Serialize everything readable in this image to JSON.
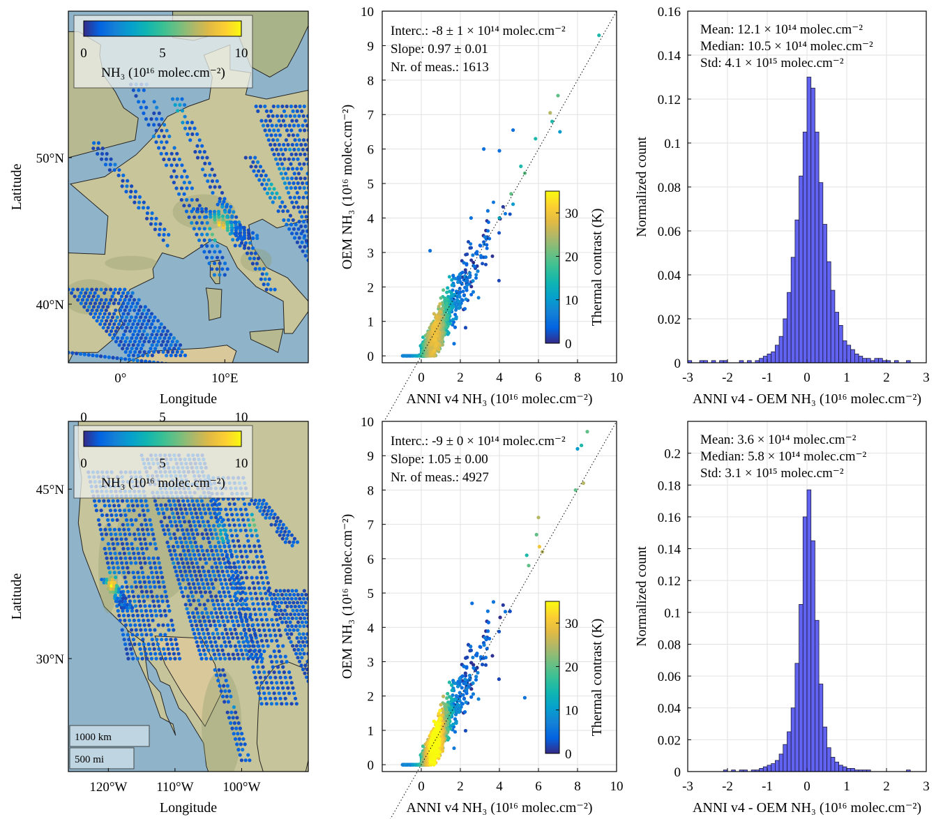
{
  "figure": {
    "maps": [
      {
        "xlabel": "Longitude",
        "ylabel": "Latitude",
        "xticks": [
          {
            "lon": 0,
            "label": "0°"
          },
          {
            "lon": 10,
            "label": "10°E"
          }
        ],
        "yticks": [
          {
            "lat": 50,
            "label": "50°N"
          },
          {
            "lat": 40,
            "label": "40°N"
          }
        ],
        "extent": {
          "lon": [
            -5,
            18
          ],
          "lat": [
            36,
            60
          ]
        },
        "colorbar": {
          "ticks": [
            "0",
            "5",
            "10"
          ],
          "range": [
            0,
            10
          ],
          "label": "NH₃ (10¹⁶ molec.cm⁻²)"
        },
        "hotspots": [
          {
            "lon": 9.5,
            "lat": 45.2,
            "value": 9
          },
          {
            "lon": 15,
            "lat": 48,
            "value": 4
          },
          {
            "lon": 5.5,
            "lat": 53,
            "value": 3
          }
        ]
      },
      {
        "xlabel": "Longitude",
        "ylabel": "Latitude",
        "xticks": [
          {
            "lon": -120,
            "label": "120°W"
          },
          {
            "lon": -110,
            "label": "110°W"
          },
          {
            "lon": -100,
            "label": "100°W"
          }
        ],
        "yticks": [
          {
            "lat": 45,
            "label": "45°N"
          },
          {
            "lat": 30,
            "label": "30°N"
          }
        ],
        "top_ticks": [
          "0",
          "5",
          "10"
        ],
        "extent": {
          "lon": [
            -126,
            -90
          ],
          "lat": [
            20,
            51
          ]
        },
        "colorbar": {
          "ticks": [
            "0",
            "5",
            "10"
          ],
          "range": [
            0,
            10
          ],
          "label": "NH₃ (10¹⁶ molec.cm⁻²)"
        },
        "scalebar": [
          "1000 km",
          "500 mi"
        ],
        "hotspots": [
          {
            "lon": -119.5,
            "lat": 36.5,
            "value": 9
          },
          {
            "lon": -98,
            "lat": 42,
            "value": 5
          },
          {
            "lon": -103,
            "lat": 41,
            "value": 3
          }
        ]
      }
    ]
  },
  "chart_data": [
    {
      "type": "scatter",
      "panel": "top-middle",
      "xlabel": "ANNI v4 NH₃ (10¹⁶ molec.cm⁻²)",
      "ylabel": "OEM NH₃ (10¹⁶ molec.cm⁻²)",
      "xlim": [
        -2,
        10
      ],
      "ylim": [
        -0.2,
        10
      ],
      "xticks": [
        0,
        2,
        4,
        6,
        8,
        10
      ],
      "yticks": [
        0,
        1,
        2,
        3,
        4,
        5,
        6,
        7,
        8,
        9,
        10
      ],
      "grid": true,
      "annotations": [
        "Interc.: -8 ± 1 × 10¹⁴ molec.cm⁻²",
        "Slope: 0.97 ± 0.01",
        "Nr. of meas.: 1613"
      ],
      "fit": {
        "intercept": -0.08,
        "slope": 0.97
      },
      "n_points": 1613,
      "one_to_one_line": true,
      "colorbar": {
        "label": "Thermal contrast (K)",
        "ticks": [
          0,
          10,
          20,
          30
        ],
        "range": [
          0,
          35
        ]
      },
      "outliers": [
        [
          9.1,
          9.3,
          15
        ],
        [
          7.0,
          7.55,
          20
        ],
        [
          7.1,
          6.5,
          10
        ],
        [
          6.6,
          7.05,
          25
        ],
        [
          6.7,
          6.8,
          15
        ],
        [
          5.85,
          6.3,
          15
        ],
        [
          4.7,
          6.55,
          5
        ],
        [
          4.0,
          5.95,
          5
        ],
        [
          3.2,
          6.0,
          5
        ],
        [
          2.55,
          4.0,
          5
        ],
        [
          0.45,
          3.05,
          5
        ],
        [
          5.3,
          5.3,
          20
        ],
        [
          5.1,
          5.5,
          15
        ],
        [
          4.6,
          4.7,
          20
        ],
        [
          4.7,
          4.4,
          10
        ],
        [
          4.0,
          4.0,
          12
        ]
      ]
    },
    {
      "type": "bar",
      "panel": "top-right",
      "xlabel": "ANNI v4 - OEM NH₃ (10¹⁶ molec.cm⁻²)",
      "ylabel": "Normalized count",
      "xlim": [
        -3,
        3
      ],
      "ylim": [
        0,
        0.16
      ],
      "xticks": [
        -3,
        -2,
        -1,
        0,
        1,
        2,
        3
      ],
      "yticks": [
        "0",
        "0.02",
        "0.04",
        "0.06",
        "0.08",
        "0.1",
        "0.12",
        "0.14",
        "0.16"
      ],
      "grid": true,
      "annotations": [
        "Mean:  12.1 × 10¹⁴  molec.cm⁻²",
        "Median:  10.5 × 10¹⁴ molec.cm⁻²",
        "Std:  4.1 × 10¹⁵ molec.cm⁻²"
      ],
      "bin_width": 0.1,
      "bin_centers": [
        -2.95,
        -2.85,
        -2.75,
        -2.65,
        -2.55,
        -2.45,
        -2.35,
        -2.25,
        -2.15,
        -2.05,
        -1.95,
        -1.85,
        -1.75,
        -1.65,
        -1.55,
        -1.45,
        -1.35,
        -1.25,
        -1.15,
        -1.05,
        -0.95,
        -0.85,
        -0.75,
        -0.65,
        -0.55,
        -0.45,
        -0.35,
        -0.25,
        -0.15,
        -0.05,
        0.05,
        0.15,
        0.25,
        0.35,
        0.45,
        0.55,
        0.65,
        0.75,
        0.85,
        0.95,
        1.05,
        1.15,
        1.25,
        1.35,
        1.45,
        1.55,
        1.65,
        1.75,
        1.85,
        1.95,
        2.05,
        2.15,
        2.25,
        2.35,
        2.45,
        2.55,
        2.65,
        2.75,
        2.85,
        2.95
      ],
      "values": [
        0.001,
        0,
        0,
        0.001,
        0.001,
        0,
        0.001,
        0,
        0.001,
        0.001,
        0,
        0,
        0,
        0.001,
        0,
        0.001,
        0,
        0.001,
        0.002,
        0.003,
        0.004,
        0.005,
        0.008,
        0.012,
        0.02,
        0.032,
        0.048,
        0.065,
        0.085,
        0.105,
        0.13,
        0.125,
        0.105,
        0.082,
        0.063,
        0.046,
        0.033,
        0.023,
        0.017,
        0.01,
        0.008,
        0.006,
        0.004,
        0.003,
        0.002,
        0.002,
        0.001,
        0.002,
        0.002,
        0.001,
        0.001,
        0,
        0.001,
        0,
        0,
        0.001,
        0,
        0,
        0,
        0
      ]
    },
    {
      "type": "scatter",
      "panel": "bottom-middle",
      "xlabel": "ANNI v4 NH₃ (10¹⁶ molec.cm⁻²)",
      "ylabel": "OEM NH₃ (10¹⁶ molec.cm⁻²)",
      "xlim": [
        -2,
        10
      ],
      "ylim": [
        -0.2,
        10
      ],
      "xticks": [
        0,
        2,
        4,
        6,
        8,
        10
      ],
      "yticks": [
        0,
        1,
        2,
        3,
        4,
        5,
        6,
        7,
        8,
        9,
        10
      ],
      "grid": true,
      "annotations": [
        "Interc.: -9 ± 0 × 10¹⁴ molec.cm⁻²",
        "Slope: 1.05 ± 0.00",
        "Nr. of meas.: 4927"
      ],
      "fit": {
        "intercept": -0.09,
        "slope": 1.05
      },
      "n_points": 4927,
      "one_to_one_line": true,
      "colorbar": {
        "label": "Thermal contrast (K)",
        "ticks": [
          0,
          10,
          20,
          30
        ],
        "range": [
          0,
          35
        ]
      },
      "outliers": [
        [
          8.5,
          9.7,
          20
        ],
        [
          8.2,
          9.3,
          15
        ],
        [
          8.0,
          9.2,
          10
        ],
        [
          8.3,
          8.2,
          25
        ],
        [
          7.9,
          8.0,
          20
        ],
        [
          6.0,
          7.2,
          25
        ],
        [
          5.9,
          6.7,
          20
        ],
        [
          6.05,
          6.35,
          30
        ],
        [
          5.3,
          1.95,
          5
        ],
        [
          2.6,
          4.7,
          5
        ],
        [
          5.4,
          6.1,
          15
        ],
        [
          6.2,
          6.2,
          25
        ],
        [
          5.5,
          5.8,
          20
        ]
      ]
    },
    {
      "type": "bar",
      "panel": "bottom-right",
      "xlabel": "ANNI v4 - OEM NH₃ (10¹⁶ molec.cm⁻²)",
      "ylabel": "Normalized count",
      "xlim": [
        -3,
        3
      ],
      "ylim": [
        0,
        0.22
      ],
      "xticks": [
        -3,
        -2,
        -1,
        0,
        1,
        2,
        3
      ],
      "yticks": [
        "0",
        "0.02",
        "0.04",
        "0.06",
        "0.08",
        "0.1",
        "0.12",
        "0.14",
        "0.16",
        "0.18",
        "0.2"
      ],
      "grid": true,
      "annotations": [
        "Mean:  3.6 × 10¹⁴  molec.cm⁻²",
        "Median:  5.8 × 10¹⁴ molec.cm⁻²",
        "Std:  3.1 × 10¹⁵ molec.cm⁻²"
      ],
      "bin_width": 0.1,
      "bin_centers": [
        -2.95,
        -2.85,
        -2.75,
        -2.65,
        -2.55,
        -2.45,
        -2.35,
        -2.25,
        -2.15,
        -2.05,
        -1.95,
        -1.85,
        -1.75,
        -1.65,
        -1.55,
        -1.45,
        -1.35,
        -1.25,
        -1.15,
        -1.05,
        -0.95,
        -0.85,
        -0.75,
        -0.65,
        -0.55,
        -0.45,
        -0.35,
        -0.25,
        -0.15,
        -0.05,
        0.05,
        0.15,
        0.25,
        0.35,
        0.45,
        0.55,
        0.65,
        0.75,
        0.85,
        0.95,
        1.05,
        1.15,
        1.25,
        1.35,
        1.45,
        1.55,
        1.65,
        1.75,
        1.85,
        1.95,
        2.05,
        2.15,
        2.25,
        2.35,
        2.45,
        2.55,
        2.65,
        2.75,
        2.85,
        2.95
      ],
      "values": [
        0,
        0,
        0,
        0,
        0,
        0,
        0,
        0,
        0,
        0.001,
        0,
        0.001,
        0,
        0.001,
        0.001,
        0,
        0.001,
        0.001,
        0.002,
        0.003,
        0.004,
        0.005,
        0.007,
        0.011,
        0.017,
        0.025,
        0.04,
        0.068,
        0.105,
        0.16,
        0.177,
        0.145,
        0.095,
        0.055,
        0.028,
        0.015,
        0.009,
        0.006,
        0.004,
        0.003,
        0.002,
        0.002,
        0.001,
        0.001,
        0.001,
        0.001,
        0,
        0,
        0,
        0,
        0,
        0,
        0,
        0,
        0,
        0.001,
        0,
        0,
        0,
        0
      ]
    }
  ]
}
